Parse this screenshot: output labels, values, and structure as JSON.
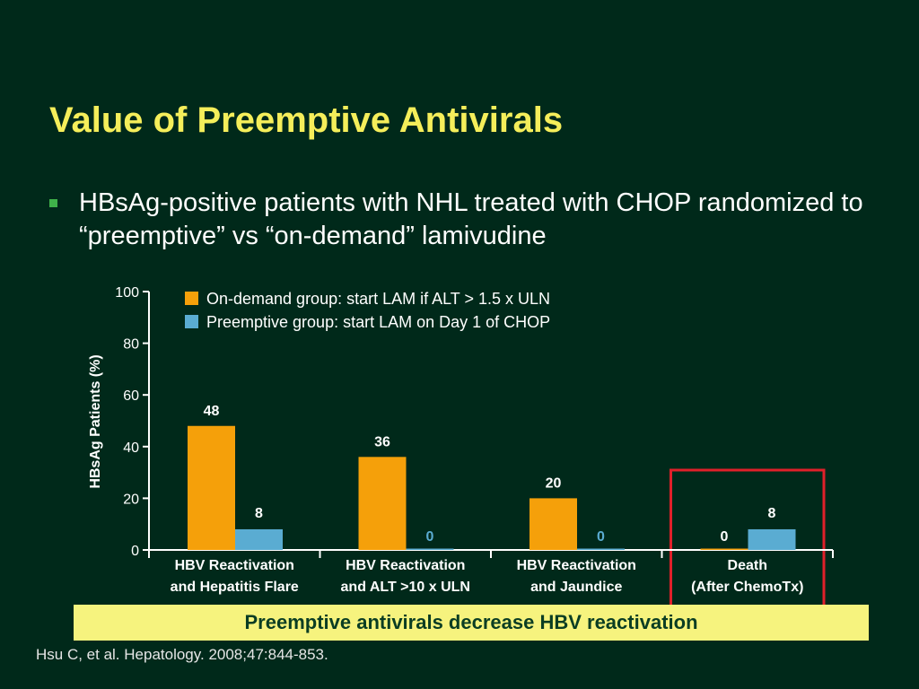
{
  "slide": {
    "title": "Value of Preemptive Antivirals",
    "bullet": "HBsAg-positive patients with NHL treated with CHOP randomized to “preemptive” vs “on-demand” lamivudine",
    "conclusion": "Preemptive antivirals decrease HBV reactivation",
    "citation": "Hsu C, et al. Hepatology. 2008;47:844-853."
  },
  "colors": {
    "background": "#00291a",
    "title": "#f5ee5a",
    "on_demand": "#f5a00a",
    "preemptive": "#5aacd2",
    "highlight_box": "#e0202a",
    "conclusion_bg": "#f6f37e"
  },
  "chart_data": {
    "type": "bar",
    "ylabel": "HBsAg Patients (%)",
    "xlabel": "",
    "ylim": [
      0,
      100
    ],
    "yticks": [
      0,
      20,
      40,
      60,
      80,
      100
    ],
    "categories": [
      [
        "HBV Reactivation",
        "and Hepatitis Flare"
      ],
      [
        "HBV Reactivation",
        "and ALT >10 x ULN"
      ],
      [
        "HBV Reactivation",
        "and Jaundice"
      ],
      [
        "Death",
        "(After ChemoTx)"
      ]
    ],
    "series": [
      {
        "name": "On-demand group: start LAM if ALT > 1.5 x ULN",
        "color": "#f5a00a",
        "values": [
          48,
          36,
          20,
          0
        ],
        "labels": [
          "48",
          "36",
          "20",
          "0"
        ]
      },
      {
        "name": "Preemptive group: start LAM on Day 1 of CHOP",
        "color": "#5aacd2",
        "values": [
          8,
          0,
          0,
          8
        ],
        "labels": [
          "8",
          "0",
          "0",
          "8"
        ]
      }
    ],
    "highlighted_category": 3,
    "legend_position": "top"
  }
}
